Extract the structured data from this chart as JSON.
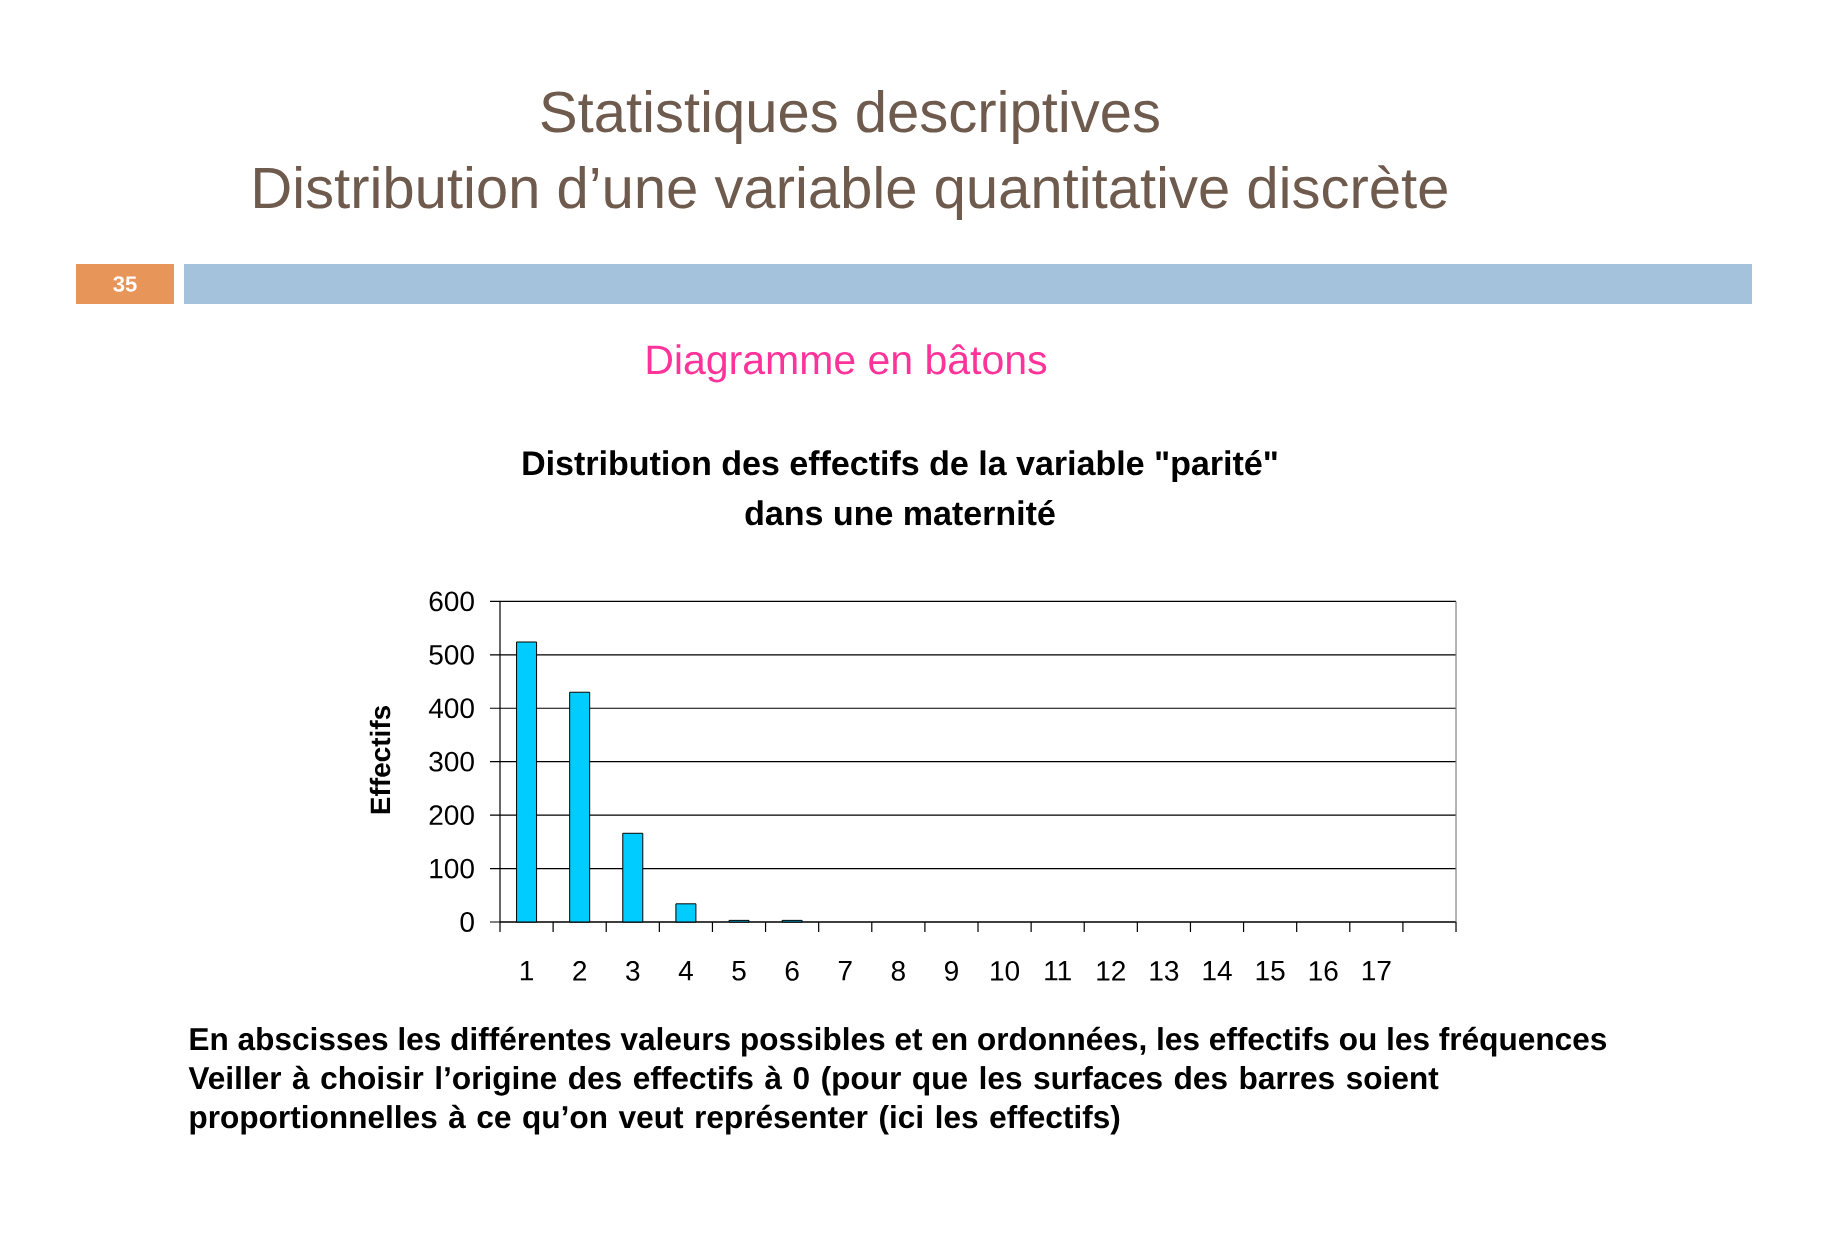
{
  "chart_data": {
    "type": "bar",
    "title": "Distribution des effectifs de la variable \"parité\" dans une maternité",
    "subtitle": "Diagramme en bâtons",
    "ylabel": "Effectifs",
    "categories": [
      "1",
      "2",
      "3",
      "4",
      "5",
      "6",
      "7",
      "8",
      "9",
      "10",
      "11",
      "12",
      "13",
      "14",
      "15",
      "16",
      "17",
      null
    ],
    "values": [
      524,
      430,
      166,
      34,
      3,
      3,
      null,
      null,
      null,
      null,
      null,
      null,
      null,
      null,
      null,
      null,
      null,
      null
    ],
    "color": "#00ccff",
    "ylim": [
      0,
      600
    ],
    "yticks": [
      0,
      100,
      200,
      300,
      400,
      500,
      600
    ],
    "grid": "y",
    "annotations": [
      "Statistiques descriptives",
      "Distribution d’une variable quantitative discrète",
      "35",
      "En abscisses les différentes valeurs possibles et en ordonnées, les effectifs ou les fréquences",
      "Veiller à choisir l’origine des effectifs à 0 (pour que les surfaces des barres soient proportionnelles à ce qu’on veut représenter (ici les effectifs)"
    ]
  }
}
